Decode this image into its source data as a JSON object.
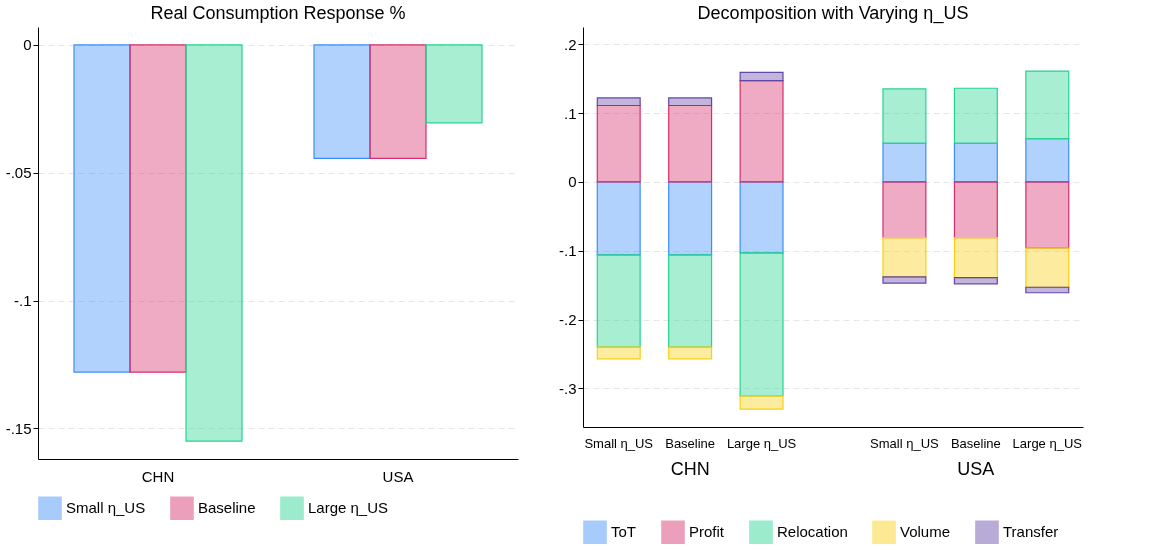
{
  "chart_data": [
    {
      "type": "bar",
      "title": "Real Consumption Response %",
      "categories": [
        "CHN",
        "USA"
      ],
      "series": [
        {
          "name": "Small η_US",
          "color": "#3d8ef8",
          "values": [
            -0.128,
            -0.0444
          ]
        },
        {
          "name": "Baseline",
          "color": "#d72d6b",
          "values": [
            -0.128,
            -0.0444
          ]
        },
        {
          "name": "Large η_US",
          "color": "#25d491",
          "values": [
            -0.155,
            -0.0305
          ]
        }
      ],
      "ylim": [
        -0.162,
        0.007
      ],
      "yticks": [
        {
          "value": 0,
          "label": "0"
        },
        {
          "value": -0.05,
          "label": "-.05"
        },
        {
          "value": -0.1,
          "label": "-.1"
        },
        {
          "value": -0.15,
          "label": "-.15"
        }
      ],
      "grid": "y",
      "legend": "bottom"
    },
    {
      "type": "bar",
      "title": "Decomposition with Varying η_US",
      "stacked": true,
      "categories": [
        "Small η_US",
        "Baseline",
        "Large η_US",
        "Small η_US",
        "Baseline",
        "Large η_US"
      ],
      "annotations": [
        "CHN",
        "USA"
      ],
      "series": [
        {
          "name": "ToT",
          "color": "#3d8ef8",
          "values": [
            -0.106,
            -0.106,
            -0.103,
            0.056,
            0.056,
            0.063
          ]
        },
        {
          "name": "Profit",
          "color": "#d72d6b",
          "values": [
            0.111,
            0.111,
            0.147,
            -0.081,
            -0.081,
            -0.096
          ]
        },
        {
          "name": "Relocation",
          "color": "#25d491",
          "values": [
            -0.134,
            -0.134,
            -0.208,
            0.079,
            0.08,
            0.098
          ]
        },
        {
          "name": "Volume",
          "color": "#facf11",
          "values": [
            -0.017,
            -0.017,
            -0.019,
            -0.057,
            -0.058,
            -0.057
          ]
        },
        {
          "name": "Transfer",
          "color": "#6446a7",
          "values": [
            0.011,
            0.011,
            0.012,
            -0.009,
            -0.009,
            -0.008
          ]
        }
      ],
      "ylim": [
        -0.356,
        0.225
      ],
      "yticks": [
        {
          "value": 0.2,
          "label": ".2"
        },
        {
          "value": 0.1,
          "label": ".1"
        },
        {
          "value": 0,
          "label": "0"
        },
        {
          "value": -0.1,
          "label": "-.1"
        },
        {
          "value": -0.2,
          "label": "-.2"
        },
        {
          "value": -0.3,
          "label": "-.3"
        }
      ],
      "grid": "y",
      "legend": "bottom"
    }
  ]
}
